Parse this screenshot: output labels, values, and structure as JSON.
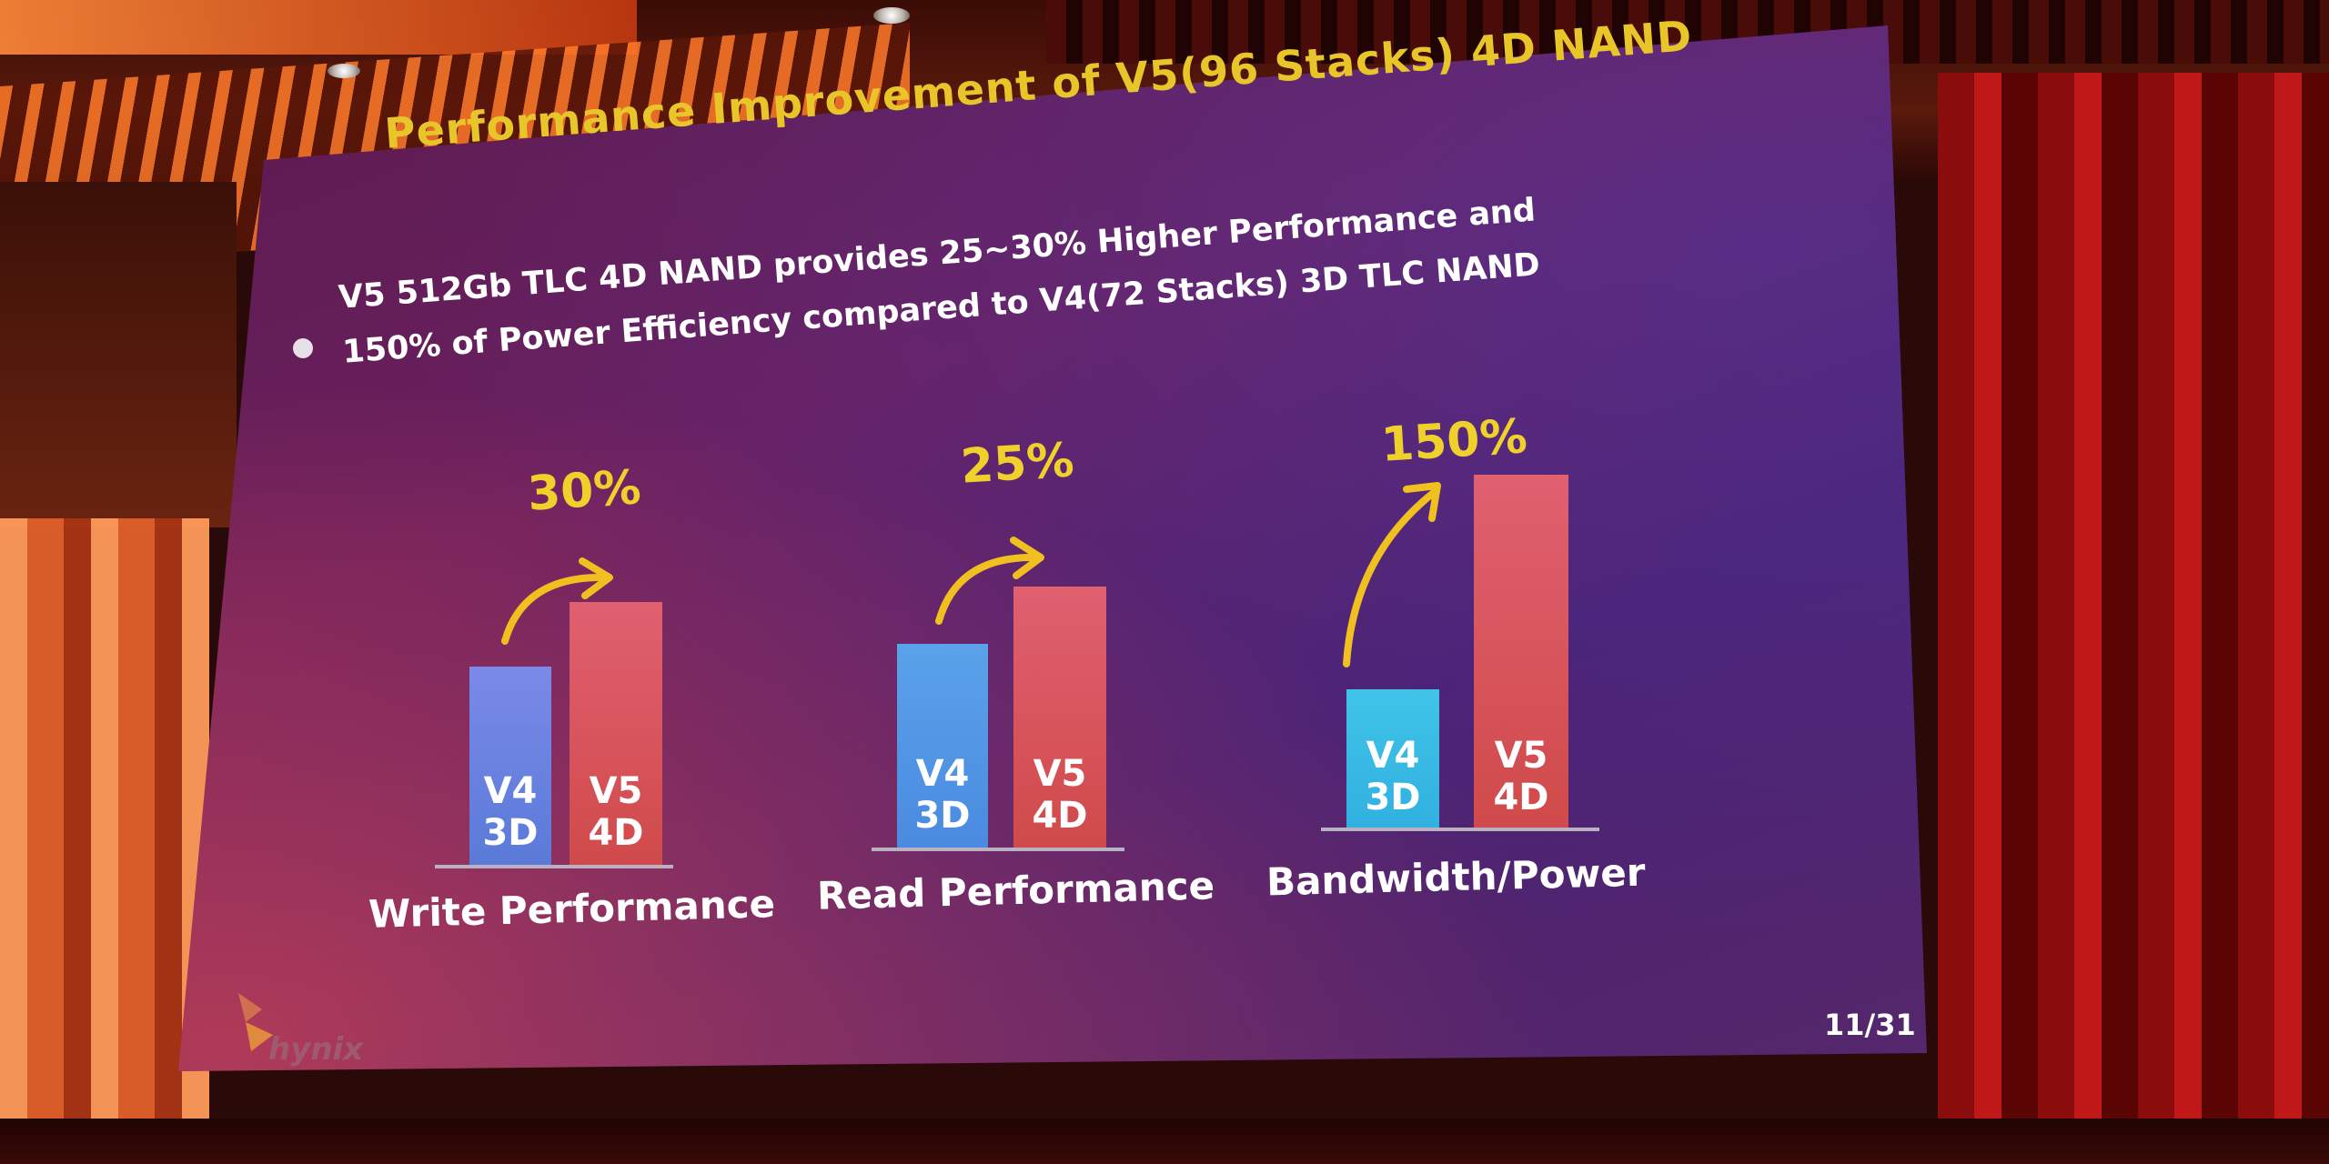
{
  "slide": {
    "title": "Performance Improvement of V5(96 Stacks) 4D NAND",
    "bullet_line1": "V5 512Gb TLC 4D NAND provides 25~30% Higher Performance and",
    "bullet_line2": "150% of Power Efficiency compared to V4(72 Stacks) 3D TLC NAND",
    "page_number": "11/31",
    "logo_text": "hynix"
  },
  "groups": [
    {
      "label": "Write Performance",
      "improvement": "30%",
      "bars": [
        {
          "line1": "V4",
          "line2": "3D",
          "color": "#6f84e4"
        },
        {
          "line1": "V5",
          "line2": "4D",
          "color": "#d9575c"
        }
      ]
    },
    {
      "label": "Read Performance",
      "improvement": "25%",
      "bars": [
        {
          "line1": "V4",
          "line2": "3D",
          "color": "#4f9ae4"
        },
        {
          "line1": "V5",
          "line2": "4D",
          "color": "#d9575c"
        }
      ]
    },
    {
      "label": "Bandwidth/Power",
      "improvement": "150%",
      "bars": [
        {
          "line1": "V4",
          "line2": "3D",
          "color": "#38bce6"
        },
        {
          "line1": "V5",
          "line2": "4D",
          "color": "#d9575c"
        }
      ]
    }
  ],
  "colors": {
    "title": "#e8c62a",
    "percent": "#f0d12c",
    "arrow": "#f0c020"
  }
}
